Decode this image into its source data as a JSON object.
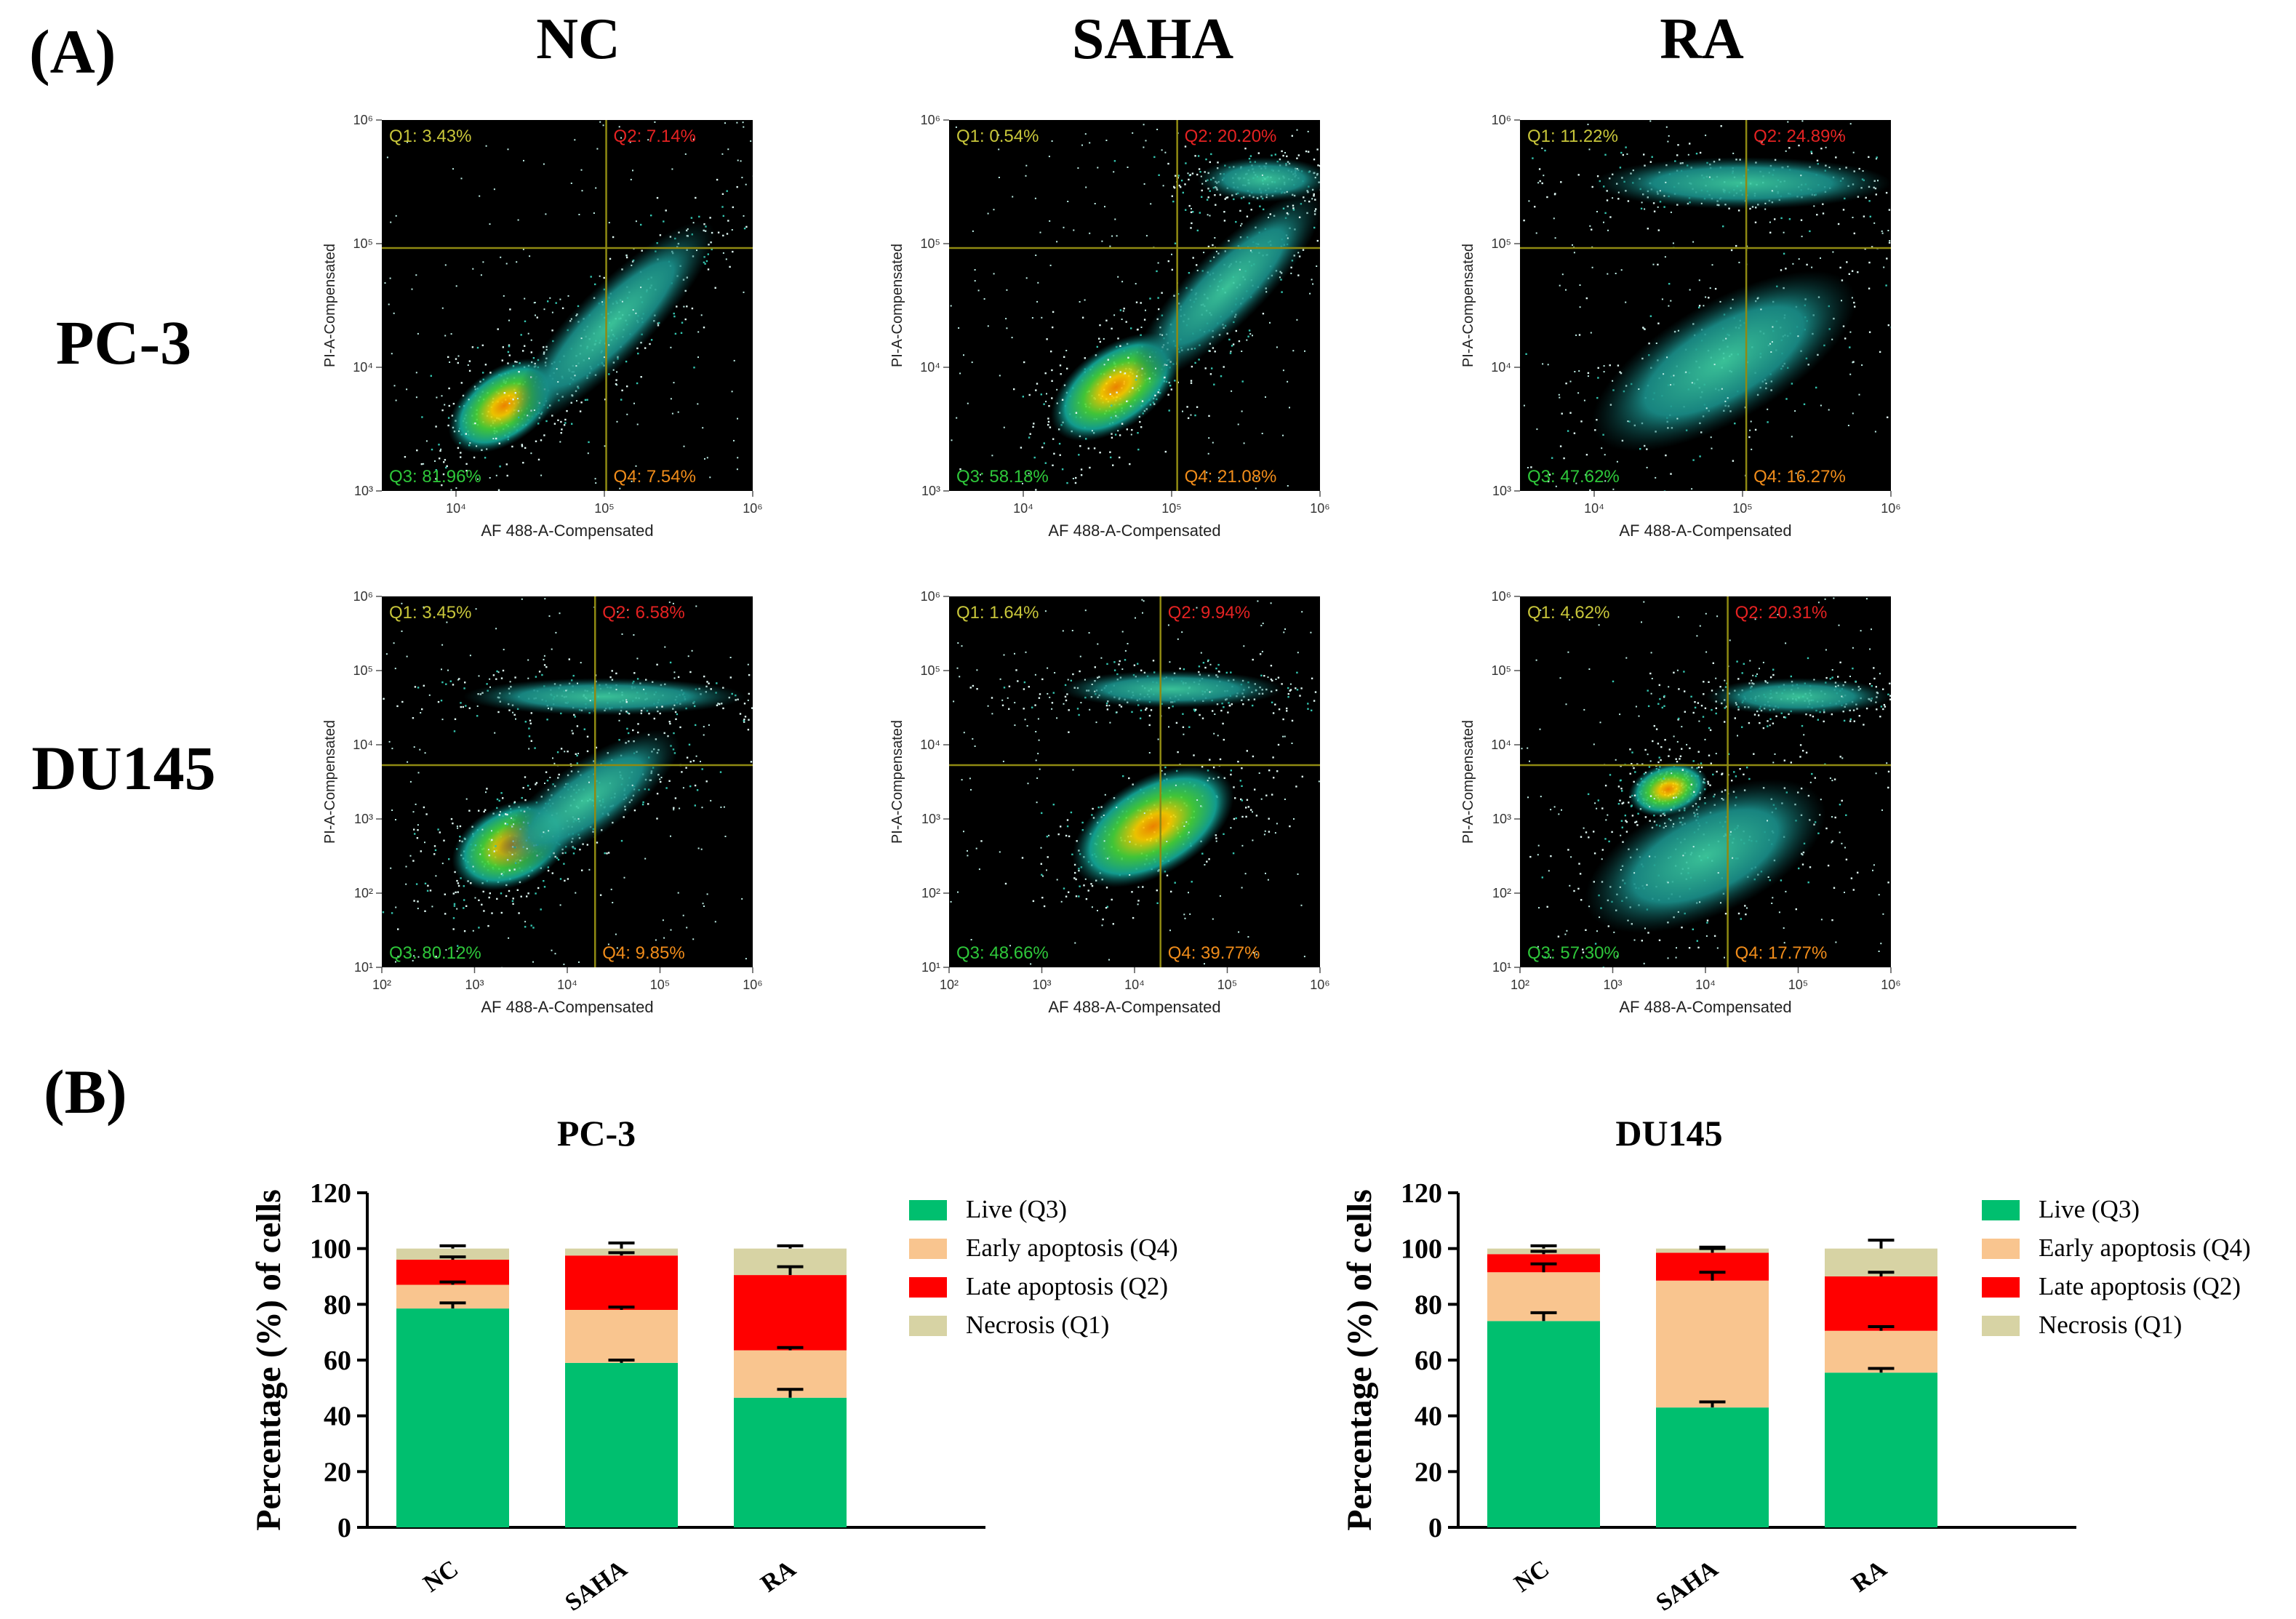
{
  "panel_labels": {
    "a": "(A)",
    "b": "(B)"
  },
  "flow": {
    "col_titles": [
      "NC",
      "SAHA",
      "RA"
    ],
    "row_titles": [
      "PC-3",
      "DU145"
    ],
    "x_axis_label": "AF 488-A-Compensated",
    "y_axis_label": "PI-A-Compensated",
    "pc3_ticks": {
      "x": [
        "10⁴",
        "10⁵",
        "10⁶"
      ],
      "y": [
        "10⁶",
        "10⁵",
        "10⁴",
        "10³"
      ]
    },
    "du145_ticks": {
      "x": [
        "10²",
        "10³",
        "10⁴",
        "10⁵",
        "10⁶"
      ],
      "y": [
        "10⁶",
        "10⁵",
        "10⁴",
        "10³",
        "10²",
        "10¹"
      ]
    },
    "plots": [
      {
        "row": 0,
        "col": 0,
        "q1": "Q1: 3.43%",
        "q2": "Q2: 7.14%",
        "q3": "Q3: 81.96%",
        "q4": "Q4: 7.54%"
      },
      {
        "row": 0,
        "col": 1,
        "q1": "Q1: 0.54%",
        "q2": "Q2: 20.20%",
        "q3": "Q3: 58.18%",
        "q4": "Q4: 21.08%"
      },
      {
        "row": 0,
        "col": 2,
        "q1": "Q1: 11.22%",
        "q2": "Q2: 24.89%",
        "q3": "Q3: 47.62%",
        "q4": "Q4: 16.27%"
      },
      {
        "row": 1,
        "col": 0,
        "q1": "Q1: 3.45%",
        "q2": "Q2: 6.58%",
        "q3": "Q3: 80.12%",
        "q4": "Q4: 9.85%"
      },
      {
        "row": 1,
        "col": 1,
        "q1": "Q1: 1.64%",
        "q2": "Q2: 9.94%",
        "q3": "Q3: 48.66%",
        "q4": "Q4: 39.77%"
      },
      {
        "row": 1,
        "col": 2,
        "q1": "Q1: 4.62%",
        "q2": "Q2: 20.31%",
        "q3": "Q3: 57.30%",
        "q4": "Q4: 17.77%"
      }
    ]
  },
  "legend": [
    "Live (Q3)",
    "Early apoptosis (Q4)",
    "Late apoptosis (Q2)",
    "Necrosis (Q1)"
  ],
  "colors": {
    "live": "#00bf6f",
    "early": "#f9c58f",
    "late": "#ff0000",
    "necrosis": "#d7d3a4",
    "quad_line": "#8f8a12",
    "q1_text": "#c8c63a",
    "q2_text": "#e52222",
    "q3_text": "#2ec73a",
    "q4_text": "#f08c1a"
  },
  "chart_data": [
    {
      "type": "bar",
      "stacked": true,
      "title": "PC-3",
      "ylabel": "Percentage (%) of cells",
      "xlabel": "",
      "ylim": [
        0,
        120
      ],
      "yticks": [
        "0",
        "20",
        "40",
        "60",
        "80",
        "100",
        "120"
      ],
      "categories": [
        "NC",
        "SAHA",
        "RA"
      ],
      "series": [
        {
          "name": "Live (Q3)",
          "values": [
            78.5,
            59,
            46.5
          ],
          "errors": [
            2,
            1,
            3
          ]
        },
        {
          "name": "Early apoptosis (Q4)",
          "values": [
            8.5,
            19,
            17
          ],
          "errors": [
            1,
            1,
            1
          ]
        },
        {
          "name": "Late apoptosis (Q2)",
          "values": [
            9,
            19.5,
            27
          ],
          "errors": [
            1,
            1,
            3
          ]
        },
        {
          "name": "Necrosis (Q1)",
          "values": [
            4,
            2.5,
            9.5
          ],
          "errors": [
            1,
            2,
            1
          ]
        }
      ]
    },
    {
      "type": "bar",
      "stacked": true,
      "title": "DU145",
      "ylabel": "Percentage (%) of cells",
      "xlabel": "",
      "ylim": [
        0,
        120
      ],
      "yticks": [
        "0",
        "20",
        "40",
        "60",
        "80",
        "100",
        "120"
      ],
      "categories": [
        "NC",
        "SAHA",
        "RA"
      ],
      "series": [
        {
          "name": "Live (Q3)",
          "values": [
            74,
            43,
            55.5
          ],
          "errors": [
            3,
            2,
            1.5
          ]
        },
        {
          "name": "Early apoptosis (Q4)",
          "values": [
            17.5,
            45.5,
            15
          ],
          "errors": [
            3,
            3,
            1.5
          ]
        },
        {
          "name": "Late apoptosis (Q2)",
          "values": [
            6.5,
            10,
            19.5
          ],
          "errors": [
            1,
            1.5,
            1.5
          ]
        },
        {
          "name": "Necrosis (Q1)",
          "values": [
            2,
            1.5,
            10
          ],
          "errors": [
            1,
            0.5,
            3
          ]
        }
      ]
    }
  ]
}
